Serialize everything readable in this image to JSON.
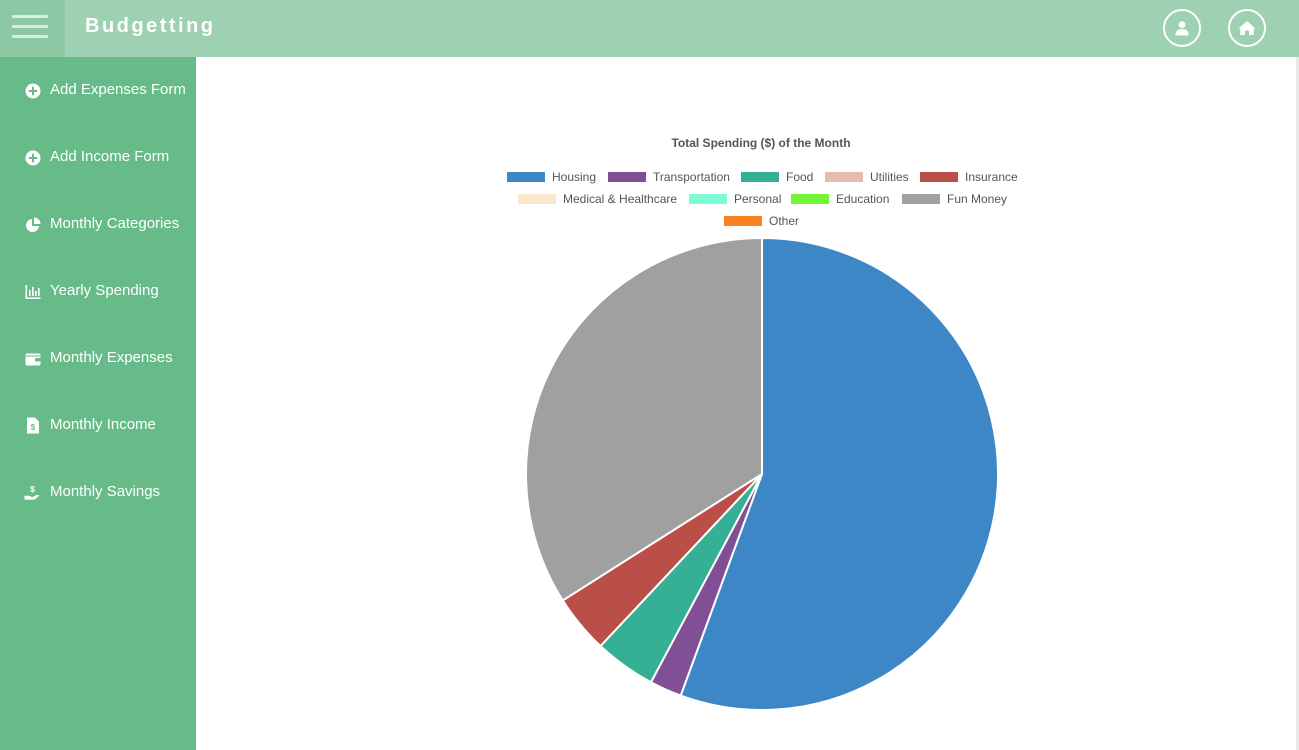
{
  "app": {
    "title": "Budgetting"
  },
  "header": {
    "buttons": [
      {
        "icon": "user-icon"
      },
      {
        "icon": "home-icon"
      }
    ]
  },
  "sidebar": {
    "items": [
      {
        "label": "Add Expenses Form",
        "icon": "plus-circle-icon"
      },
      {
        "label": "Add Income Form",
        "icon": "plus-circle-icon"
      },
      {
        "label": "Monthly Categories",
        "icon": "pie-chart-icon"
      },
      {
        "label": "Yearly Spending",
        "icon": "bar-chart-icon"
      },
      {
        "label": "Monthly Expenses",
        "icon": "wallet-icon"
      },
      {
        "label": "Monthly Income",
        "icon": "invoice-icon"
      },
      {
        "label": "Monthly Savings",
        "icon": "hand-dollar-icon"
      }
    ]
  },
  "colors": {
    "header": "#9ed1b2",
    "sidebar": "#66bb89"
  },
  "chart_data": {
    "type": "pie",
    "title": "Total Spending ($) of the Month",
    "legend_position": "top",
    "series": [
      {
        "name": "Housing",
        "value": 55.6,
        "color": "#3d87c6"
      },
      {
        "name": "Transportation",
        "value": 2.2,
        "color": "#814f96"
      },
      {
        "name": "Food",
        "value": 4.2,
        "color": "#36b094"
      },
      {
        "name": "Utilities",
        "value": 0,
        "color": "#e6bbb0"
      },
      {
        "name": "Insurance",
        "value": 4.0,
        "color": "#b94f47"
      },
      {
        "name": "Medical & Healthcare",
        "value": 0,
        "color": "#fbe7cc"
      },
      {
        "name": "Personal",
        "value": 0,
        "color": "#7dfcd5"
      },
      {
        "name": "Education",
        "value": 0,
        "color": "#72f539"
      },
      {
        "name": "Fun Money",
        "value": 34.0,
        "color": "#a0a0a0"
      },
      {
        "name": "Other",
        "value": 0,
        "color": "#fb8221"
      }
    ]
  }
}
